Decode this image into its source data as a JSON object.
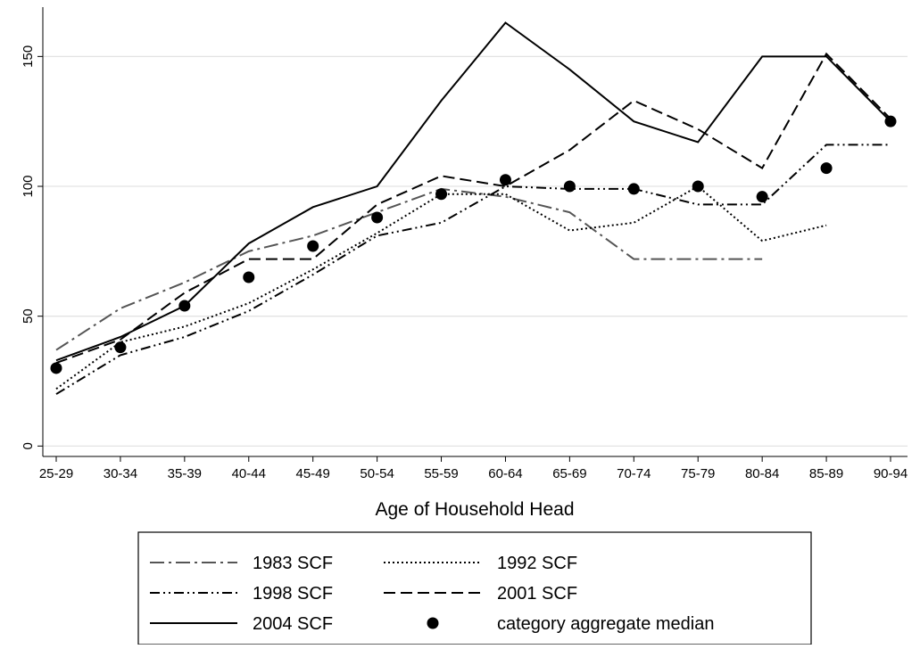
{
  "chart_data": {
    "type": "line",
    "x_label": "Age of Household Head",
    "categories": [
      "25-29",
      "30-34",
      "35-39",
      "40-44",
      "45-49",
      "50-54",
      "55-59",
      "60-64",
      "65-69",
      "70-74",
      "75-79",
      "80-84",
      "85-89",
      "90-94"
    ],
    "ylim": [
      -4,
      169
    ],
    "yticks": [
      0,
      50,
      100,
      150
    ],
    "grid": true,
    "series": [
      {
        "name": "1983 SCF",
        "color": "#555555",
        "style": "dashdot",
        "values": [
          37,
          53,
          63,
          75,
          81,
          90,
          99,
          96,
          90,
          72,
          72,
          72,
          null,
          null
        ]
      },
      {
        "name": "1992 SCF",
        "color": "#000000",
        "style": "dotted",
        "values": [
          22,
          40,
          46,
          55,
          68,
          82,
          97,
          97,
          83,
          86,
          100,
          79,
          85,
          null
        ]
      },
      {
        "name": "1998 SCF",
        "color": "#000000",
        "style": "dashdotdot",
        "values": [
          20,
          35,
          42,
          52,
          66,
          81,
          86,
          100,
          99,
          99,
          93,
          93,
          116,
          116
        ]
      },
      {
        "name": "2001 SCF",
        "color": "#000000",
        "style": "dashed",
        "values": [
          32,
          41,
          59,
          72,
          72,
          93,
          104,
          100,
          114,
          133,
          122,
          107,
          151,
          126
        ]
      },
      {
        "name": "2004 SCF",
        "color": "#000000",
        "style": "solid",
        "values": [
          33,
          42,
          54,
          78,
          92,
          100,
          133,
          163,
          145,
          125,
          117,
          150,
          150,
          125
        ]
      },
      {
        "name": "category aggregate median",
        "color": "#000000",
        "style": "marker",
        "values": [
          30,
          38,
          54,
          65,
          77,
          88,
          97,
          102.5,
          100,
          99,
          100,
          96,
          107,
          125
        ]
      }
    ]
  }
}
